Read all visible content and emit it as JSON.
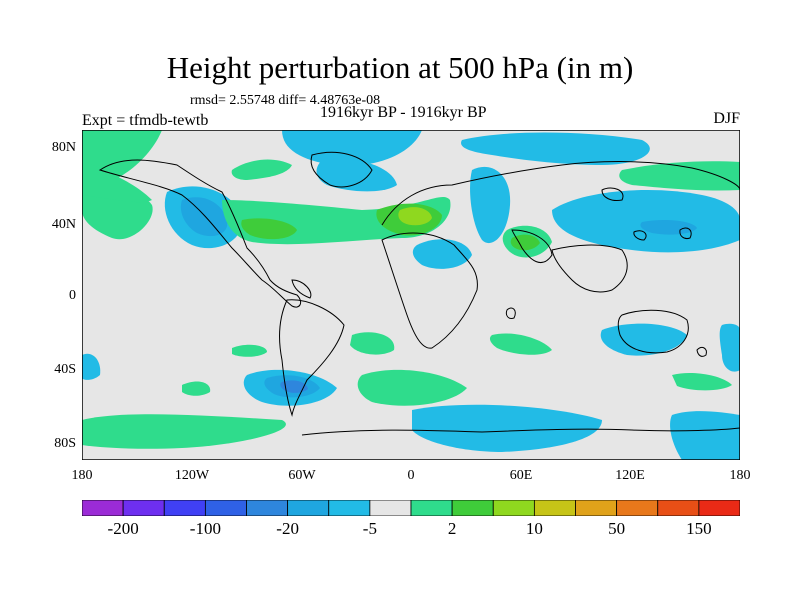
{
  "title": "Height perturbation at 500 hPa (in m)",
  "stats": "rmsd= 2.55748 diff= 4.48763e-08",
  "experiment": "Expt = tfmdb-tewtb",
  "period": "1916kyr BP - 1916kyr BP",
  "season": "DJF",
  "map": {
    "lat_ticks": [
      "80N",
      "40N",
      "0",
      "40S",
      "80S"
    ],
    "lon_ticks": [
      "180",
      "120W",
      "60W",
      "0",
      "60E",
      "120E",
      "180"
    ],
    "background_color": "#e6e6e6",
    "coastline_color": "#000000"
  },
  "colorbar": {
    "colors": [
      "#9b2bd6",
      "#6e2ff0",
      "#4040f5",
      "#2f61e6",
      "#2e86dd",
      "#1fa6e0",
      "#22bbe6",
      "#e6e6e6",
      "#2fdc8c",
      "#3fcc3a",
      "#8fd81f",
      "#c6c417",
      "#e0a21a",
      "#e8781b",
      "#e84f16",
      "#ea2a16"
    ],
    "labels": [
      "-200",
      "-100",
      "-20",
      "-5",
      "2",
      "10",
      "50",
      "150"
    ]
  }
}
